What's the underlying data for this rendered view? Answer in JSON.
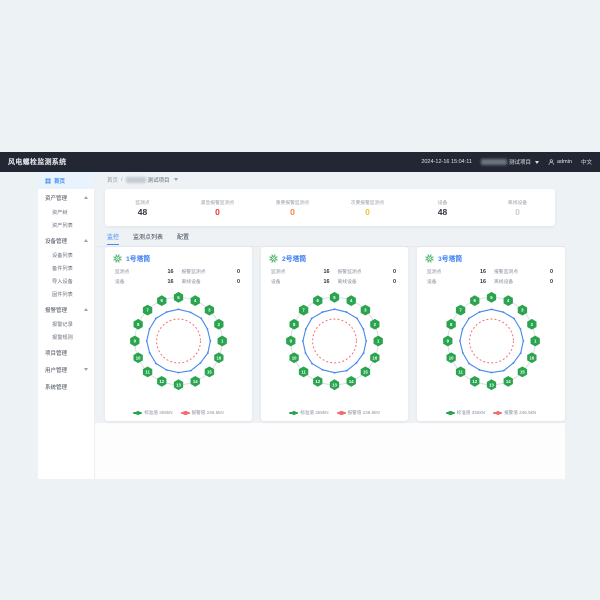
{
  "theme": {
    "navbar_bg": "#222733",
    "accent_green": "#2aa44f",
    "accent_blue": "#3f8cf3",
    "alarm_red": "#f56c6c"
  },
  "header": {
    "title": "风电螺栓监测系统",
    "datetime": "2024-12-16 15:04:11",
    "project": "测试项目",
    "user": "admin",
    "lang": "中文"
  },
  "breadcrumb": {
    "home": "首页",
    "separator": "/",
    "current": "测试项目"
  },
  "sidebar": {
    "items": [
      {
        "label": "首页",
        "type": "item",
        "active": true
      },
      {
        "label": "资产管理",
        "type": "group",
        "arrow": "up"
      },
      {
        "label": "资产树",
        "type": "sub"
      },
      {
        "label": "资产列表",
        "type": "sub"
      },
      {
        "label": "设备管理",
        "type": "group",
        "arrow": "up"
      },
      {
        "label": "设备列表",
        "type": "sub"
      },
      {
        "label": "备件列表",
        "type": "sub"
      },
      {
        "label": "导入设备",
        "type": "sub"
      },
      {
        "label": "固件列表",
        "type": "sub"
      },
      {
        "label": "报警管理",
        "type": "group",
        "arrow": "up"
      },
      {
        "label": "报警记录",
        "type": "sub"
      },
      {
        "label": "报警规则",
        "type": "sub"
      },
      {
        "label": "项目管理",
        "type": "group"
      },
      {
        "label": "用户管理",
        "type": "group",
        "arrow": "down"
      },
      {
        "label": "系统管理",
        "type": "group"
      }
    ]
  },
  "stats": [
    {
      "label": "监测点",
      "value": "48",
      "color": "#2f3440"
    },
    {
      "label": "紧急报警监测点",
      "value": "0",
      "color": "#f53131"
    },
    {
      "label": "重要报警监测点",
      "value": "0",
      "color": "#ff7e3e"
    },
    {
      "label": "次要报警监测点",
      "value": "0",
      "color": "#f7c234"
    },
    {
      "label": "设备",
      "value": "48",
      "color": "#2f3440"
    },
    {
      "label": "离线设备",
      "value": "0",
      "color": "#c7ccd4"
    }
  ],
  "tabs": [
    {
      "label": "监控",
      "active": true
    },
    {
      "label": "监测点列表",
      "active": false
    },
    {
      "label": "配置",
      "active": false
    }
  ],
  "chart_data": [
    {
      "type": "radar-ring",
      "title": "1号塔筒",
      "stats": [
        {
          "label": "监测点",
          "value": "16"
        },
        {
          "label": "报警监测点",
          "value": "0"
        },
        {
          "label": "设备",
          "value": "16"
        },
        {
          "label": "离线设备",
          "value": "0"
        }
      ],
      "bolt_ids": [
        1,
        2,
        3,
        4,
        5,
        6,
        7,
        8,
        9,
        10,
        11,
        12,
        13,
        14,
        15,
        16
      ],
      "standard_value_kN": 355,
      "alarm_value_kN": 246.5,
      "current_values_kN": [
        358,
        352,
        360,
        349,
        356,
        351,
        359,
        353,
        357,
        350,
        358,
        352,
        355,
        361,
        348,
        356
      ],
      "legend": [
        {
          "label": "标准值 355kN",
          "color": "#2aa44f"
        },
        {
          "label": "报警值 246.5kN",
          "color": "#f56c6c"
        }
      ],
      "colors": {
        "node": "#2aa44f",
        "ring": "#d7dce2",
        "current": "#4688ee",
        "alarm": "#f56c6c"
      }
    },
    {
      "type": "radar-ring",
      "title": "2号塔筒",
      "stats": [
        {
          "label": "监测点",
          "value": "16"
        },
        {
          "label": "报警监测点",
          "value": "0"
        },
        {
          "label": "设备",
          "value": "16"
        },
        {
          "label": "离线设备",
          "value": "0"
        }
      ],
      "bolt_ids": [
        1,
        2,
        3,
        4,
        5,
        6,
        7,
        8,
        9,
        10,
        11,
        12,
        13,
        14,
        15,
        16
      ],
      "standard_value_kN": 355,
      "alarm_value_kN": 246.5,
      "current_values_kN": [
        356,
        350,
        359,
        351,
        357,
        352,
        360,
        349,
        355,
        353,
        358,
        350,
        356,
        360,
        348,
        354
      ],
      "legend": [
        {
          "label": "标准值 355kN",
          "color": "#2aa44f"
        },
        {
          "label": "报警值 246.5kN",
          "color": "#f56c6c"
        }
      ],
      "colors": {
        "node": "#2aa44f",
        "ring": "#d7dce2",
        "current": "#4688ee",
        "alarm": "#f56c6c"
      }
    },
    {
      "type": "radar-ring",
      "title": "3号塔筒",
      "stats": [
        {
          "label": "监测点",
          "value": "16"
        },
        {
          "label": "报警监测点",
          "value": "0"
        },
        {
          "label": "设备",
          "value": "16"
        },
        {
          "label": "离线设备",
          "value": "0"
        }
      ],
      "bolt_ids": [
        1,
        2,
        3,
        4,
        5,
        6,
        7,
        8,
        9,
        10,
        11,
        12,
        13,
        14,
        15,
        16
      ],
      "standard_value_kN": 355,
      "alarm_value_kN": 246.5,
      "current_values_kN": [
        357,
        351,
        358,
        350,
        356,
        352,
        359,
        353,
        355,
        349,
        357,
        351,
        354,
        360,
        348,
        355
      ],
      "legend": [
        {
          "label": "标准值 355kN",
          "color": "#2aa44f"
        },
        {
          "label": "报警值 246.5kN",
          "color": "#f56c6c"
        }
      ],
      "colors": {
        "node": "#2aa44f",
        "ring": "#d7dce2",
        "current": "#4688ee",
        "alarm": "#f56c6c"
      }
    }
  ]
}
